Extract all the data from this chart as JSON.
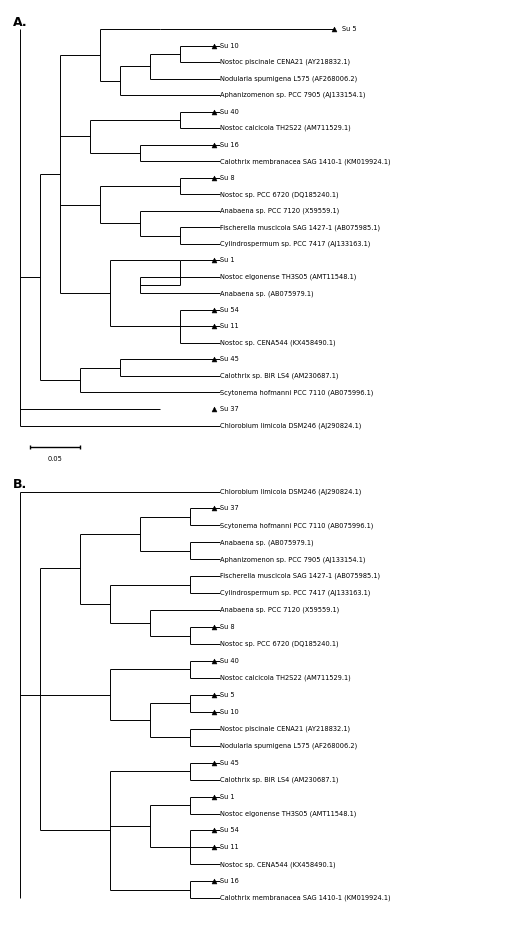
{
  "fig_width": 5.14,
  "fig_height": 9.33,
  "bg_color": "#ffffff",
  "lw": 0.7,
  "font_size": 4.8,
  "triangle_size": 3.5,
  "panel_A_label": "A.",
  "panel_B_label": "B.",
  "scalebar_label": "0.05",
  "tree_A_leaves": [
    {
      "name": "Su 5",
      "y": 0,
      "is_isolate": true
    },
    {
      "name": "Su 10",
      "y": 1,
      "is_isolate": true
    },
    {
      "name": "Nostoc piscinale CENA21 (AY218832.1)",
      "y": 2,
      "is_isolate": false
    },
    {
      "name": "Nodularia spumigena L575 (AF268006.2)",
      "y": 3,
      "is_isolate": false
    },
    {
      "name": "Aphanizomenon sp. PCC 7905 (AJ133154.1)",
      "y": 4,
      "is_isolate": false
    },
    {
      "name": "Su 40",
      "y": 5,
      "is_isolate": true
    },
    {
      "name": "Nostoc calcicola TH2S22 (AM711529.1)",
      "y": 6,
      "is_isolate": false
    },
    {
      "name": "Su 16",
      "y": 7,
      "is_isolate": true
    },
    {
      "name": "Calothrix membranacea SAG 1410-1 (KM019924.1)",
      "y": 8,
      "is_isolate": false
    },
    {
      "name": "Su 8",
      "y": 9,
      "is_isolate": true
    },
    {
      "name": "Nostoc sp. PCC 6720 (DQ185240.1)",
      "y": 10,
      "is_isolate": false
    },
    {
      "name": "Anabaena sp. PCC 7120 (X59559.1)",
      "y": 11,
      "is_isolate": false
    },
    {
      "name": "Fischerella muscicola SAG 1427-1 (AB075985.1)",
      "y": 12,
      "is_isolate": false
    },
    {
      "name": "Cylindrospermum sp. PCC 7417 (AJ133163.1)",
      "y": 13,
      "is_isolate": false
    },
    {
      "name": "Su 1",
      "y": 14,
      "is_isolate": true
    },
    {
      "name": "Nostoc elgonense TH3S05 (AMT11548.1)",
      "y": 15,
      "is_isolate": false
    },
    {
      "name": "Anabaena sp. (AB075979.1)",
      "y": 16,
      "is_isolate": false
    },
    {
      "name": "Su 54",
      "y": 17,
      "is_isolate": true
    },
    {
      "name": "Su 11",
      "y": 18,
      "is_isolate": true
    },
    {
      "name": "Nostoc sp. CENA544 (KX458490.1)",
      "y": 19,
      "is_isolate": false
    },
    {
      "name": "Su 45",
      "y": 20,
      "is_isolate": true
    },
    {
      "name": "Calothrix sp. BIR LS4 (AM230687.1)",
      "y": 21,
      "is_isolate": false
    },
    {
      "name": "Scytonema hofmanni PCC 7110 (AB075996.1)",
      "y": 22,
      "is_isolate": false
    },
    {
      "name": "Su 37",
      "y": 23,
      "is_isolate": true
    },
    {
      "name": "Chlorobium limicola DSM246 (AJ290824.1)",
      "y": 24,
      "is_isolate": false
    }
  ],
  "tree_B_leaves": [
    {
      "name": "Chlorobium limicola DSM246 (AJ290824.1)",
      "y": 0,
      "is_isolate": false
    },
    {
      "name": "Su 37",
      "y": 1,
      "is_isolate": true
    },
    {
      "name": "Scytonema hofmanni PCC 7110 (AB075996.1)",
      "y": 2,
      "is_isolate": false
    },
    {
      "name": "Anabaena sp. (AB075979.1)",
      "y": 3,
      "is_isolate": false
    },
    {
      "name": "Aphanizomenon sp. PCC 7905 (AJ133154.1)",
      "y": 4,
      "is_isolate": false
    },
    {
      "name": "Fischerella muscicola SAG 1427-1 (AB075985.1)",
      "y": 5,
      "is_isolate": false
    },
    {
      "name": "Cylindrospermum sp. PCC 7417 (AJ133163.1)",
      "y": 6,
      "is_isolate": false
    },
    {
      "name": "Anabaena sp. PCC 7120 (X59559.1)",
      "y": 7,
      "is_isolate": false
    },
    {
      "name": "Su 8",
      "y": 8,
      "is_isolate": true
    },
    {
      "name": "Nostoc sp. PCC 6720 (DQ185240.1)",
      "y": 9,
      "is_isolate": false
    },
    {
      "name": "Su 40",
      "y": 10,
      "is_isolate": true
    },
    {
      "name": "Nostoc calcicola TH2S22 (AM711529.1)",
      "y": 11,
      "is_isolate": false
    },
    {
      "name": "Su 5",
      "y": 12,
      "is_isolate": true
    },
    {
      "name": "Su 10",
      "y": 13,
      "is_isolate": true
    },
    {
      "name": "Nostoc piscinale CENA21 (AY218832.1)",
      "y": 14,
      "is_isolate": false
    },
    {
      "name": "Nodularia spumigena L575 (AF268006.2)",
      "y": 15,
      "is_isolate": false
    },
    {
      "name": "Su 45",
      "y": 16,
      "is_isolate": true
    },
    {
      "name": "Calothrix sp. BIR LS4 (AM230687.1)",
      "y": 17,
      "is_isolate": false
    },
    {
      "name": "Su 1",
      "y": 18,
      "is_isolate": true
    },
    {
      "name": "Nostoc elgonense TH3S05 (AMT11548.1)",
      "y": 19,
      "is_isolate": false
    },
    {
      "name": "Su 54",
      "y": 20,
      "is_isolate": true
    },
    {
      "name": "Su 11",
      "y": 21,
      "is_isolate": true
    },
    {
      "name": "Nostoc sp. CENA544 (KX458490.1)",
      "y": 22,
      "is_isolate": false
    },
    {
      "name": "Su 16",
      "y": 23,
      "is_isolate": true
    },
    {
      "name": "Calothrix membranacea SAG 1410-1 (KM019924.1)",
      "y": 24,
      "is_isolate": false
    }
  ]
}
